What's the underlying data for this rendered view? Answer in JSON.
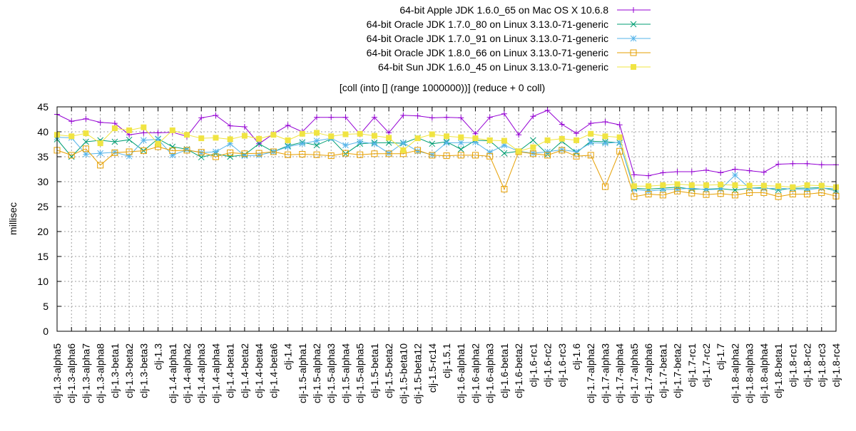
{
  "chart_data": {
    "type": "line",
    "title": "[coll (into [] (range 1000000))] (reduce + 0 coll)",
    "xlabel": "",
    "ylabel": "millisec",
    "ylim": [
      0,
      45
    ],
    "yticks": [
      0,
      5,
      10,
      15,
      20,
      25,
      30,
      35,
      40,
      45
    ],
    "grid": true,
    "legend_position": "top-right",
    "categories": [
      "clj-1.3-alpha5",
      "clj-1.3-alpha6",
      "clj-1.3-alpha7",
      "clj-1.3-alpha8",
      "clj-1.3-beta1",
      "clj-1.3-beta2",
      "clj-1.3-beta3",
      "clj-1.3",
      "clj-1.4-alpha1",
      "clj-1.4-alpha2",
      "clj-1.4-alpha3",
      "clj-1.4-alpha4",
      "clj-1.4-beta1",
      "clj-1.4-beta2",
      "clj-1.4-beta4",
      "clj-1.4-beta6",
      "clj-1.4",
      "clj-1.5-alpha1",
      "clj-1.5-alpha2",
      "clj-1.5-alpha3",
      "clj-1.5-alpha4",
      "clj-1.5-alpha5",
      "clj-1.5-beta1",
      "clj-1.5-beta2",
      "clj-1.5-beta10",
      "clj-1.5-beta12",
      "clj-1.5-rc14",
      "clj-1.5.1",
      "clj-1.6-alpha1",
      "clj-1.6-alpha2",
      "clj-1.6-alpha3",
      "clj-1.6-beta1",
      "clj-1.6-beta2",
      "clj-1.6-rc1",
      "clj-1.6-rc2",
      "clj-1.6-rc3",
      "clj-1.6",
      "clj-1.7-alpha2",
      "clj-1.7-alpha3",
      "clj-1.7-alpha4",
      "clj-1.7-alpha5",
      "clj-1.7-alpha6",
      "clj-1.7-beta1",
      "clj-1.7-beta2",
      "clj-1.7-rc1",
      "clj-1.7-rc2",
      "clj-1.7",
      "clj-1.8-alpha2",
      "clj-1.8-alpha3",
      "clj-1.8-alpha4",
      "clj-1.8-beta1",
      "clj-1.8-rc1",
      "clj-1.8-rc2",
      "clj-1.8-rc3",
      "clj-1.8-rc4"
    ],
    "series": [
      {
        "name": "64-bit Apple JDK 1.6.0_65 on Mac OS X 10.6.8",
        "color": "#9400d3",
        "marker": "plus",
        "values": [
          43.5,
          42.1,
          42.6,
          41.9,
          41.7,
          39.4,
          39.8,
          39.8,
          39.9,
          39.1,
          42.8,
          43.3,
          41.2,
          41.0,
          37.6,
          39.6,
          41.3,
          40.0,
          42.9,
          42.9,
          42.9,
          39.5,
          42.9,
          39.8,
          43.3,
          43.2,
          42.8,
          42.9,
          42.8,
          39.6,
          42.9,
          43.6,
          39.4,
          43.1,
          44.3,
          41.5,
          39.7,
          41.7,
          42.0,
          41.4,
          31.4,
          31.2,
          31.8,
          32.0,
          32.0,
          32.3,
          31.8,
          32.5,
          32.2,
          31.9,
          33.5,
          33.6,
          33.6,
          33.4,
          33.4
        ]
      },
      {
        "name": "64-bit Oracle JDK 1.7.0_80 on Linux 3.13.0-71-generic",
        "color": "#009e73",
        "marker": "x",
        "values": [
          38.5,
          35.0,
          38.0,
          38.3,
          38.0,
          38.4,
          36.2,
          38.6,
          37.0,
          36.5,
          34.9,
          35.6,
          35.0,
          35.4,
          37.6,
          36.0,
          37.2,
          37.9,
          37.3,
          38.6,
          35.6,
          37.6,
          37.8,
          37.8,
          37.7,
          38.8,
          37.6,
          38.0,
          36.5,
          38.3,
          38.2,
          35.7,
          36.1,
          38.3,
          35.5,
          38.1,
          35.8,
          38.1,
          38.0,
          37.8,
          28.7,
          28.5,
          28.7,
          28.9,
          28.5,
          28.5,
          28.6,
          28.3,
          28.7,
          28.8,
          28.3,
          28.7,
          28.7,
          28.8,
          28.2
        ]
      },
      {
        "name": "64-bit Oracle JDK 1.7.0_91 on Linux 3.13.0-71-generic",
        "color": "#56b4e9",
        "marker": "star",
        "values": [
          38.9,
          38.8,
          35.5,
          35.7,
          35.9,
          35.1,
          38.3,
          38.5,
          35.3,
          36.4,
          35.8,
          36.0,
          37.6,
          35.2,
          35.3,
          36.0,
          37.0,
          37.6,
          38.2,
          38.7,
          37.3,
          38.0,
          37.6,
          35.7,
          37.8,
          36.1,
          35.4,
          37.8,
          37.8,
          37.9,
          35.9,
          37.3,
          36.1,
          35.7,
          36.0,
          36.4,
          36.0,
          37.8,
          37.7,
          37.9,
          28.5,
          28.1,
          28.4,
          28.5,
          28.7,
          28.4,
          28.5,
          31.3,
          28.7,
          28.6,
          28.7,
          28.5,
          28.4,
          28.7,
          28.6
        ]
      },
      {
        "name": "64-bit Oracle JDK 1.8.0_66 on Linux 3.13.0-71-generic",
        "color": "#e69f00",
        "marker": "open-square",
        "values": [
          36.3,
          35.3,
          36.6,
          33.3,
          35.8,
          36.0,
          36.2,
          37.0,
          36.2,
          36.3,
          35.9,
          35.0,
          35.8,
          35.6,
          35.7,
          36.0,
          35.4,
          35.5,
          35.4,
          35.2,
          35.7,
          35.4,
          35.6,
          35.6,
          35.6,
          36.3,
          35.3,
          35.2,
          35.3,
          35.3,
          35.1,
          28.5,
          36.0,
          35.6,
          35.3,
          36.3,
          35.1,
          35.3,
          29.0,
          36.1,
          27.0,
          27.5,
          27.3,
          28.1,
          27.7,
          27.4,
          27.6,
          27.3,
          27.8,
          27.8,
          27.0,
          27.5,
          27.5,
          27.8,
          27.1
        ]
      },
      {
        "name": "64-bit Sun JDK 1.6.0_45 on Linux 3.13.0-71-generic",
        "color": "#f0e442",
        "marker": "filled-square",
        "values": [
          39.4,
          39.1,
          39.7,
          37.7,
          40.7,
          40.3,
          40.9,
          37.6,
          40.3,
          39.4,
          38.7,
          38.8,
          38.5,
          39.2,
          38.6,
          39.4,
          38.3,
          39.6,
          39.8,
          39.1,
          39.5,
          39.6,
          39.2,
          38.8,
          36.3,
          38.7,
          39.5,
          39.1,
          38.9,
          38.7,
          38.3,
          38.2,
          36.1,
          36.9,
          38.3,
          38.6,
          38.3,
          39.6,
          39.1,
          38.9,
          29.1,
          29.1,
          29.3,
          29.5,
          29.3,
          29.3,
          29.4,
          29.3,
          29.2,
          29.2,
          29.1,
          28.9,
          29.3,
          29.2,
          28.9
        ]
      }
    ]
  }
}
